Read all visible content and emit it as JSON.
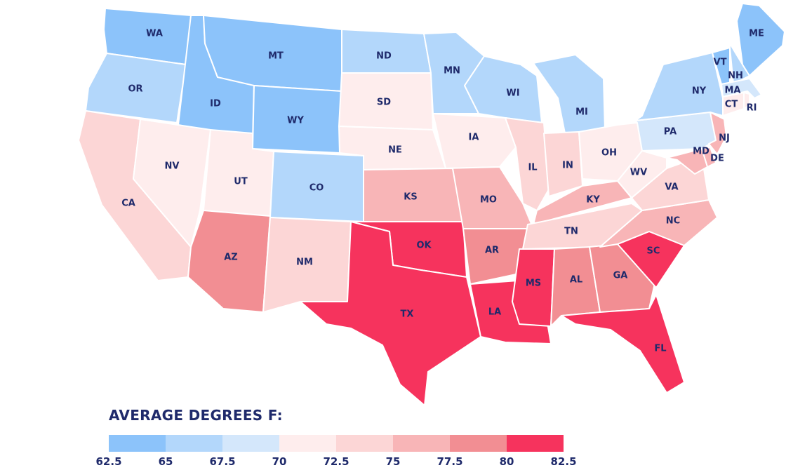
{
  "legend": {
    "title": "AVERAGE DEGREES F:",
    "ticks": [
      "62.5",
      "65",
      "67.5",
      "70",
      "72.5",
      "75",
      "77.5",
      "80",
      "82.5"
    ],
    "bins": [
      {
        "range": [
          62.5,
          65
        ],
        "color": "#8cc3fa"
      },
      {
        "range": [
          65,
          67.5
        ],
        "color": "#b3d7fb"
      },
      {
        "range": [
          67.5,
          70
        ],
        "color": "#d4e7fb"
      },
      {
        "range": [
          70,
          72.5
        ],
        "color": "#feeded"
      },
      {
        "range": [
          72.5,
          75
        ],
        "color": "#fcd6d6"
      },
      {
        "range": [
          75,
          77.5
        ],
        "color": "#f8b5b7"
      },
      {
        "range": [
          77.5,
          80
        ],
        "color": "#f28e93"
      },
      {
        "range": [
          80,
          82.5
        ],
        "color": "#f6335d"
      }
    ]
  },
  "states": [
    {
      "abbr": "WA",
      "bin": 0
    },
    {
      "abbr": "OR",
      "bin": 1
    },
    {
      "abbr": "CA",
      "bin": 4
    },
    {
      "abbr": "ID",
      "bin": 0
    },
    {
      "abbr": "NV",
      "bin": 3
    },
    {
      "abbr": "MT",
      "bin": 0
    },
    {
      "abbr": "WY",
      "bin": 0
    },
    {
      "abbr": "UT",
      "bin": 3
    },
    {
      "abbr": "AZ",
      "bin": 6
    },
    {
      "abbr": "CO",
      "bin": 1
    },
    {
      "abbr": "NM",
      "bin": 4
    },
    {
      "abbr": "ND",
      "bin": 1
    },
    {
      "abbr": "SD",
      "bin": 3
    },
    {
      "abbr": "NE",
      "bin": 3
    },
    {
      "abbr": "KS",
      "bin": 5
    },
    {
      "abbr": "OK",
      "bin": 7
    },
    {
      "abbr": "TX",
      "bin": 7
    },
    {
      "abbr": "MN",
      "bin": 1
    },
    {
      "abbr": "IA",
      "bin": 3
    },
    {
      "abbr": "MO",
      "bin": 5
    },
    {
      "abbr": "AR",
      "bin": 6
    },
    {
      "abbr": "LA",
      "bin": 7
    },
    {
      "abbr": "WI",
      "bin": 1
    },
    {
      "abbr": "IL",
      "bin": 4
    },
    {
      "abbr": "MI",
      "bin": 1
    },
    {
      "abbr": "IN",
      "bin": 4
    },
    {
      "abbr": "OH",
      "bin": 3
    },
    {
      "abbr": "KY",
      "bin": 5
    },
    {
      "abbr": "TN",
      "bin": 4
    },
    {
      "abbr": "MS",
      "bin": 7
    },
    {
      "abbr": "AL",
      "bin": 6
    },
    {
      "abbr": "GA",
      "bin": 6
    },
    {
      "abbr": "FL",
      "bin": 7
    },
    {
      "abbr": "SC",
      "bin": 7
    },
    {
      "abbr": "NC",
      "bin": 5
    },
    {
      "abbr": "VA",
      "bin": 4
    },
    {
      "abbr": "WV",
      "bin": 3
    },
    {
      "abbr": "PA",
      "bin": 2
    },
    {
      "abbr": "NY",
      "bin": 1
    },
    {
      "abbr": "VT",
      "bin": 0
    },
    {
      "abbr": "NH",
      "bin": 1
    },
    {
      "abbr": "ME",
      "bin": 0
    },
    {
      "abbr": "MA",
      "bin": 2
    },
    {
      "abbr": "RI",
      "bin": 3
    },
    {
      "abbr": "CT",
      "bin": 3
    },
    {
      "abbr": "NJ",
      "bin": 5
    },
    {
      "abbr": "DE",
      "bin": 5
    },
    {
      "abbr": "MD",
      "bin": 5
    }
  ]
}
